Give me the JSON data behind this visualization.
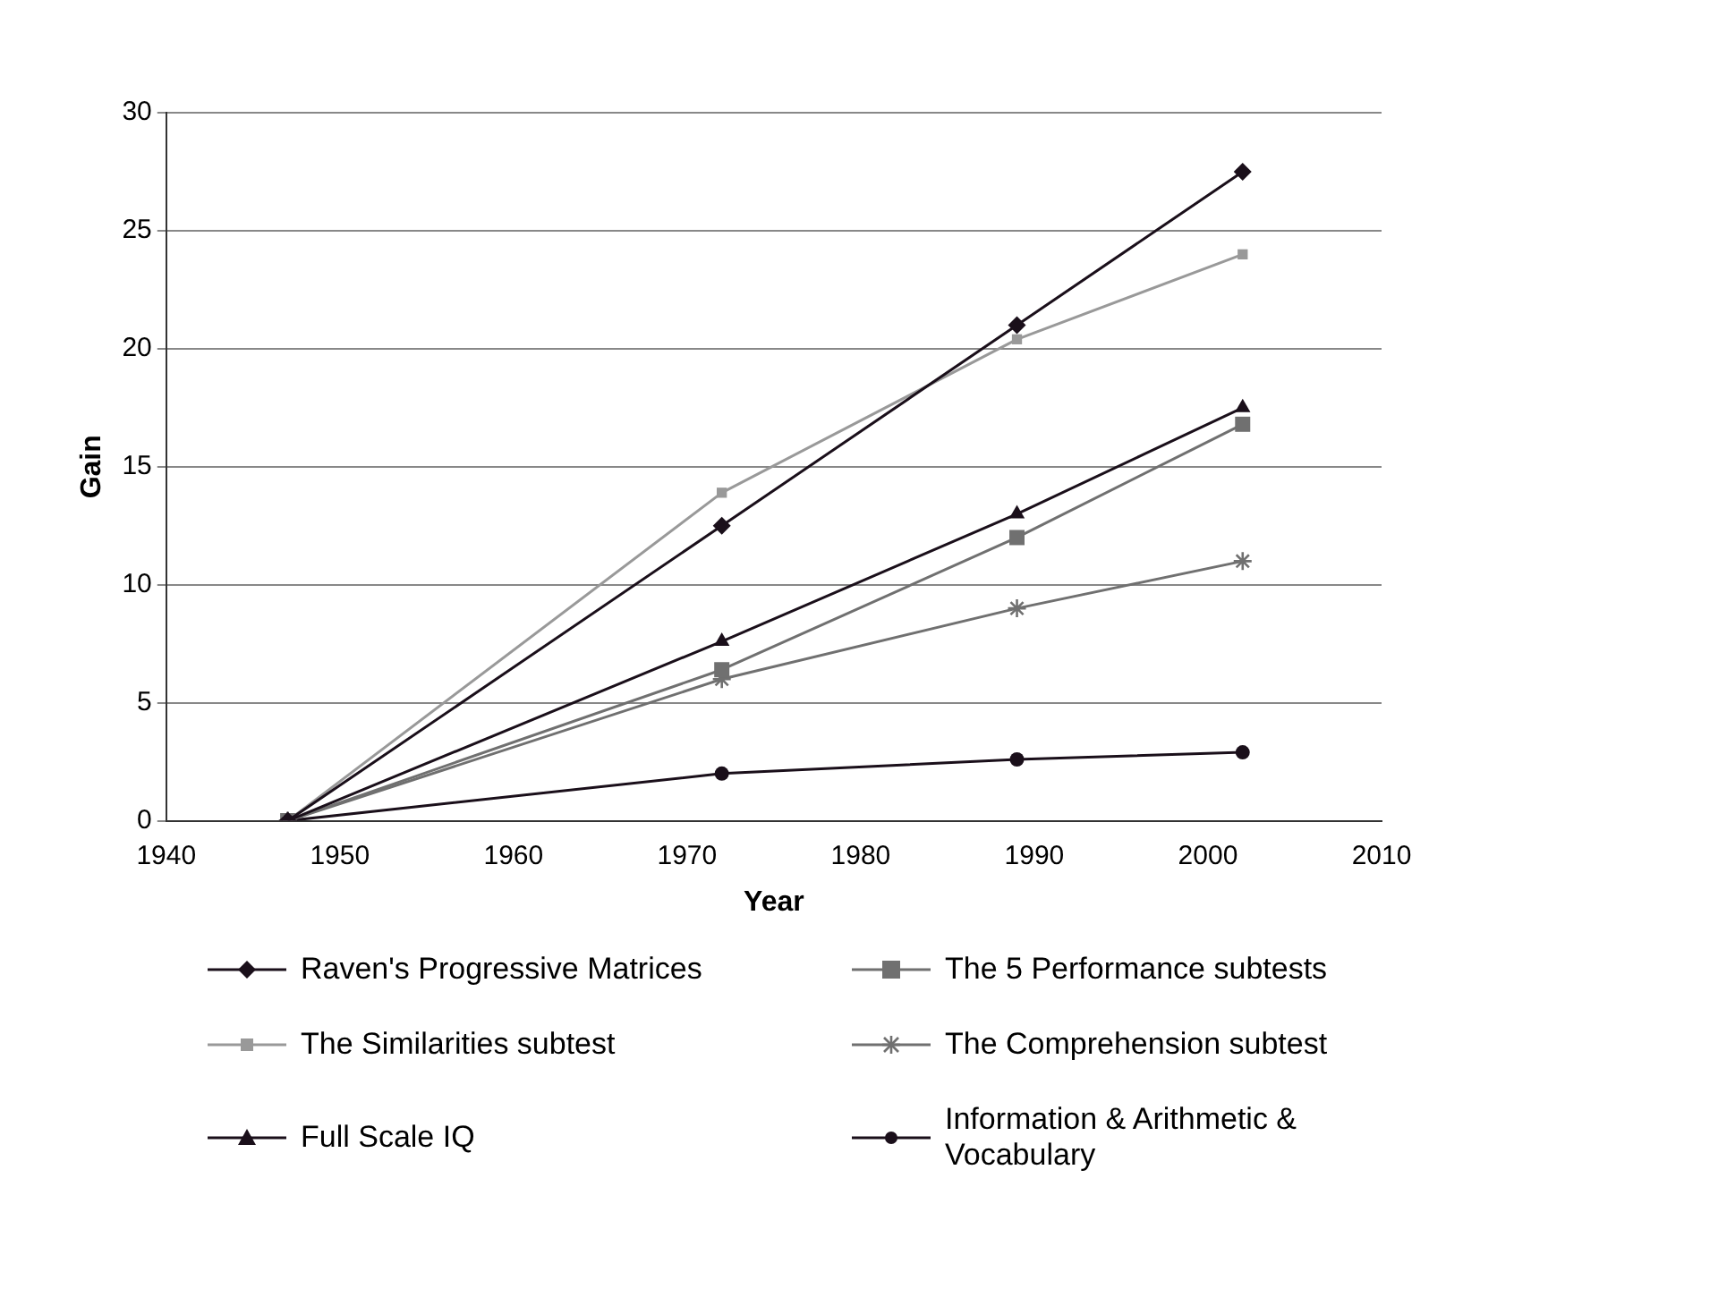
{
  "chart_data": {
    "type": "line",
    "xlabel": "Year",
    "ylabel": "Gain",
    "x": [
      1947,
      1972,
      1989,
      2002
    ],
    "xlim": [
      1940,
      2010
    ],
    "xticks": [
      1940,
      1950,
      1960,
      1970,
      1980,
      1990,
      2000,
      2010
    ],
    "ylim": [
      0,
      30
    ],
    "yticks": [
      0,
      5,
      10,
      15,
      20,
      25,
      30
    ],
    "grid": "y",
    "legend": "bottom",
    "series": [
      {
        "name": "Raven's Progressive Matrices",
        "color": "#1a0f1a",
        "marker": "diamond",
        "values": [
          0,
          12.5,
          21,
          27.5
        ]
      },
      {
        "name": "The Similarities subtest",
        "color": "#999999",
        "marker": "square",
        "values": [
          0,
          13.9,
          20.4,
          24
        ]
      },
      {
        "name": "Full Scale IQ",
        "color": "#1a0f1a",
        "marker": "triangle",
        "values": [
          0,
          7.6,
          13,
          17.5
        ]
      },
      {
        "name": "The 5 Performance subtests",
        "color": "#707070",
        "marker": "square",
        "values": [
          0,
          6.4,
          12,
          16.8
        ]
      },
      {
        "name": "The Comprehension subtest",
        "color": "#707070",
        "marker": "cross",
        "values": [
          0,
          6,
          9,
          11
        ]
      },
      {
        "name": "Information & Arithmetic & Vocabulary",
        "color": "#1a0f1a",
        "marker": "circle",
        "values": [
          0,
          2,
          2.6,
          2.9
        ]
      }
    ]
  }
}
